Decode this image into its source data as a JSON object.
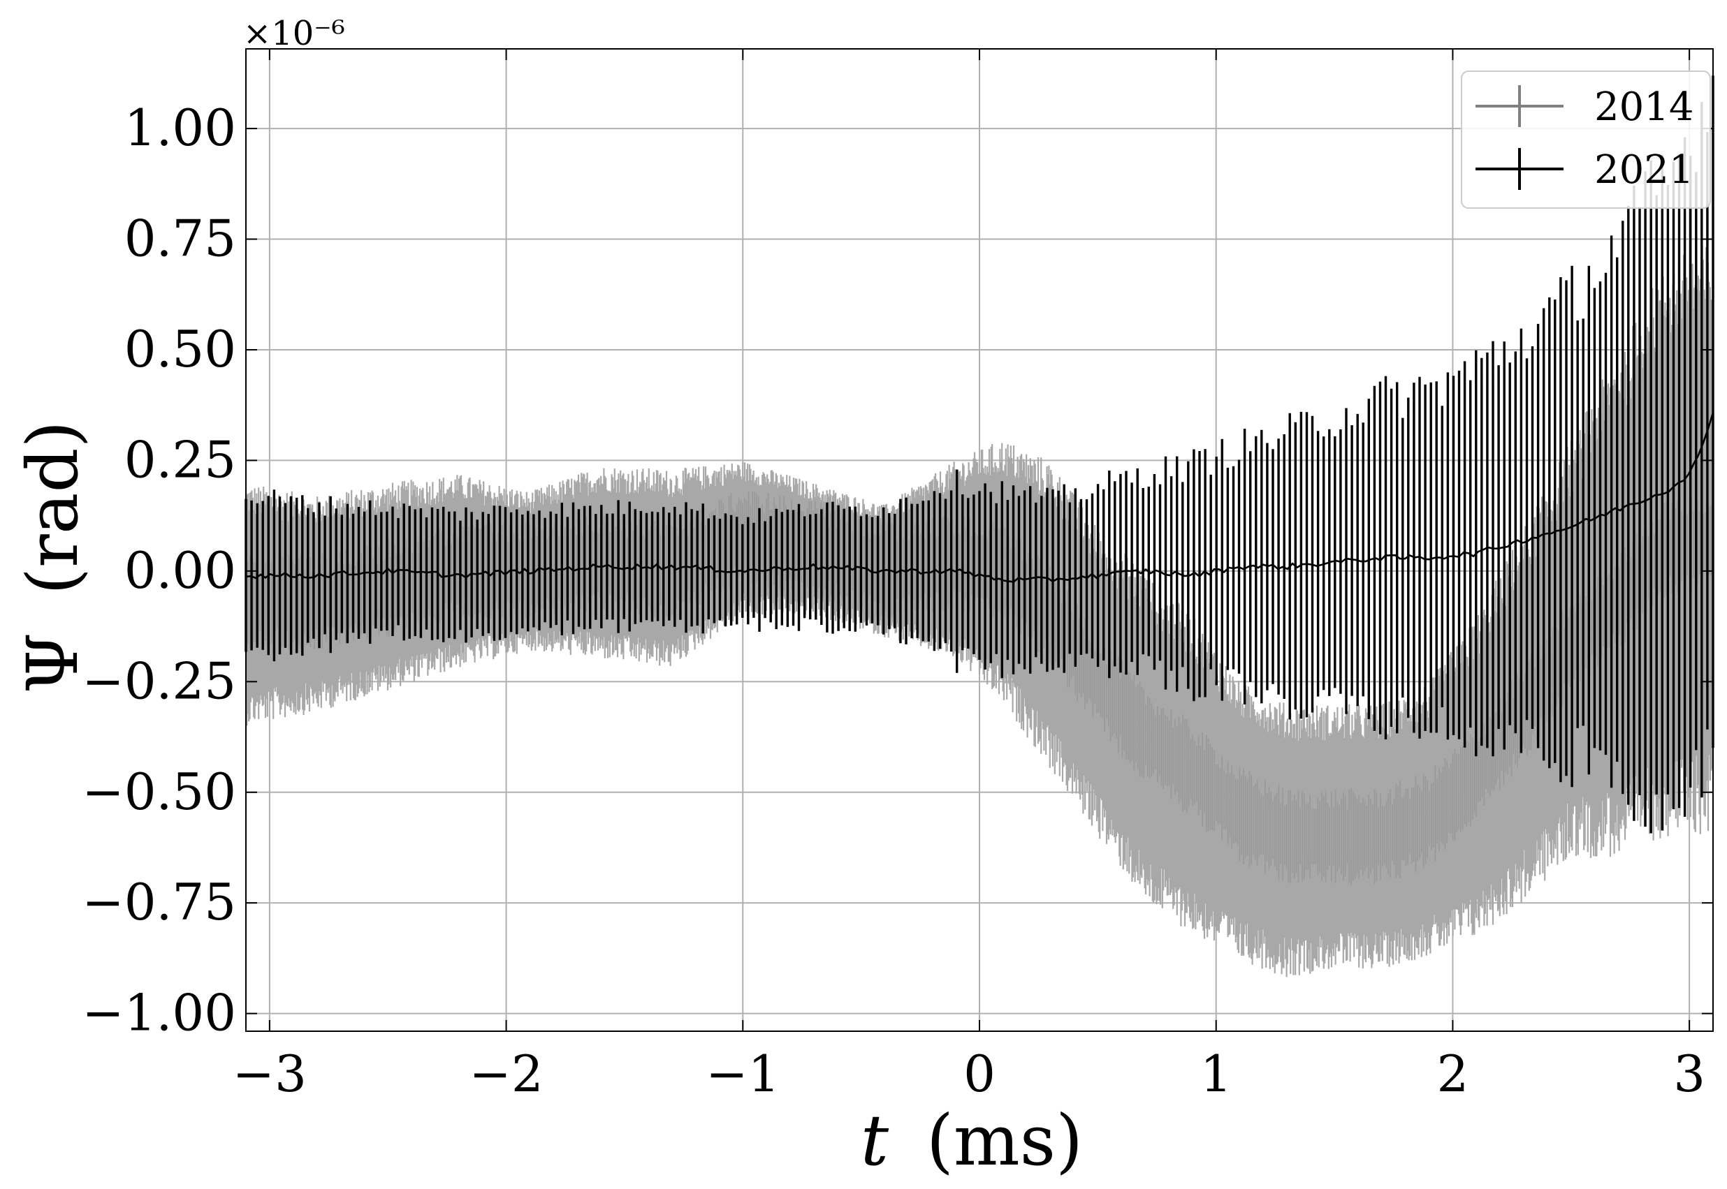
{
  "chart_data": {
    "type": "line",
    "title": "",
    "xlabel_var": "t",
    "xlabel_unit": "(ms)",
    "ylabel_var": "Ψ",
    "ylabel_unit": "(rad)",
    "y_offset_label": "×10⁻⁶",
    "xlim": [
      -3.1,
      3.1
    ],
    "ylim": [
      -1.04,
      1.18
    ],
    "x_ticks": [
      -3,
      -2,
      -1,
      0,
      1,
      2,
      3
    ],
    "x_tick_labels": [
      "−3",
      "−2",
      "−1",
      "0",
      "1",
      "2",
      "3"
    ],
    "y_ticks": [
      1.0,
      0.75,
      0.5,
      0.25,
      0.0,
      -0.25,
      -0.5,
      -0.75,
      -1.0
    ],
    "y_tick_labels": [
      "1.00",
      "0.75",
      "0.50",
      "0.25",
      "0.00",
      "−0.25",
      "−0.50",
      "−0.75",
      "−1.00"
    ],
    "grid": true,
    "legend_position": "top-right",
    "series": [
      {
        "name": "2014",
        "color": "#808080",
        "band_color": "#a8a8a8",
        "x": [
          -3.1,
          -2.8,
          -2.5,
          -2.2,
          -1.9,
          -1.6,
          -1.3,
          -1.0,
          -0.7,
          -0.4,
          -0.1,
          0.1,
          0.3,
          0.5,
          0.7,
          0.9,
          1.1,
          1.3,
          1.5,
          1.7,
          1.9,
          2.1,
          2.3,
          2.5,
          2.7,
          2.9,
          3.1
        ],
        "upper": [
          0.2,
          0.17,
          0.2,
          0.22,
          0.18,
          0.24,
          0.23,
          0.25,
          0.2,
          0.15,
          0.25,
          0.3,
          0.25,
          0.1,
          0.0,
          -0.1,
          -0.25,
          -0.3,
          -0.3,
          -0.3,
          -0.25,
          -0.1,
          0.1,
          0.3,
          0.5,
          0.7,
          0.75
        ],
        "lower": [
          -0.35,
          -0.32,
          -0.27,
          -0.22,
          -0.18,
          -0.2,
          -0.22,
          -0.1,
          -0.1,
          -0.15,
          -0.2,
          -0.3,
          -0.45,
          -0.6,
          -0.75,
          -0.82,
          -0.88,
          -0.92,
          -0.9,
          -0.9,
          -0.87,
          -0.83,
          -0.75,
          -0.65,
          -0.65,
          -0.6,
          -0.6
        ],
        "center": [
          -0.07,
          -0.07,
          -0.04,
          0.0,
          0.0,
          0.02,
          0.0,
          0.08,
          0.05,
          0.0,
          0.02,
          0.0,
          -0.1,
          -0.25,
          -0.37,
          -0.45,
          -0.55,
          -0.6,
          -0.6,
          -0.6,
          -0.56,
          -0.46,
          -0.32,
          -0.17,
          -0.07,
          0.05,
          0.07
        ]
      },
      {
        "name": "2021",
        "color": "#000000",
        "x": [
          -3.1,
          -2.8,
          -2.5,
          -2.2,
          -1.9,
          -1.6,
          -1.3,
          -1.0,
          -0.7,
          -0.4,
          -0.1,
          0.1,
          0.3,
          0.5,
          0.7,
          0.9,
          1.1,
          1.3,
          1.5,
          1.7,
          1.9,
          2.1,
          2.3,
          2.5,
          2.7,
          2.9,
          3.0,
          3.05,
          3.1
        ],
        "y": [
          -0.01,
          -0.01,
          0.0,
          -0.01,
          0.0,
          0.01,
          0.01,
          0.0,
          0.01,
          0.0,
          0.0,
          -0.02,
          -0.02,
          -0.01,
          0.0,
          -0.01,
          0.01,
          0.01,
          0.02,
          0.03,
          0.03,
          0.04,
          0.07,
          0.1,
          0.14,
          0.18,
          0.22,
          0.27,
          0.36
        ],
        "err": [
          0.18,
          0.16,
          0.14,
          0.14,
          0.14,
          0.13,
          0.14,
          0.12,
          0.13,
          0.14,
          0.2,
          0.2,
          0.18,
          0.2,
          0.22,
          0.25,
          0.27,
          0.3,
          0.33,
          0.36,
          0.38,
          0.42,
          0.46,
          0.52,
          0.6,
          0.7,
          0.75,
          0.78,
          0.72
        ]
      }
    ]
  }
}
